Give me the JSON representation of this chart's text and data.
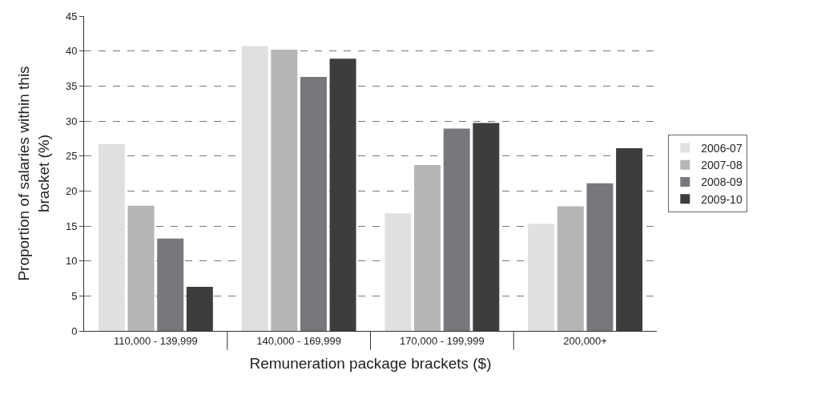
{
  "chart_data": {
    "type": "bar",
    "xlabel": "Remuneration package brackets ($)",
    "ylabel": "Proportion of salaries within this bracket (%)",
    "categories": [
      "110,000 - 139,999",
      "140,000 - 169,999",
      "170,000 - 199,999",
      "200,000+"
    ],
    "series": [
      {
        "name": "2006-07",
        "color": "#e0e0e2",
        "values": [
          26.7,
          40.7,
          16.8,
          15.3
        ]
      },
      {
        "name": "2007-08",
        "color": "#b5b5b8",
        "values": [
          17.9,
          40.2,
          23.7,
          17.8
        ]
      },
      {
        "name": "2008-09",
        "color": "#77787b",
        "values": [
          13.2,
          36.3,
          28.9,
          21.1
        ]
      },
      {
        "name": "2009-10",
        "color": "#3d3d3f",
        "values": [
          6.3,
          38.9,
          29.7,
          26.1
        ]
      }
    ],
    "ylim": [
      0,
      45
    ],
    "yticks": [
      0,
      5,
      10,
      15,
      20,
      25,
      30,
      35,
      40,
      45
    ],
    "grid": "y",
    "legend": "right"
  }
}
